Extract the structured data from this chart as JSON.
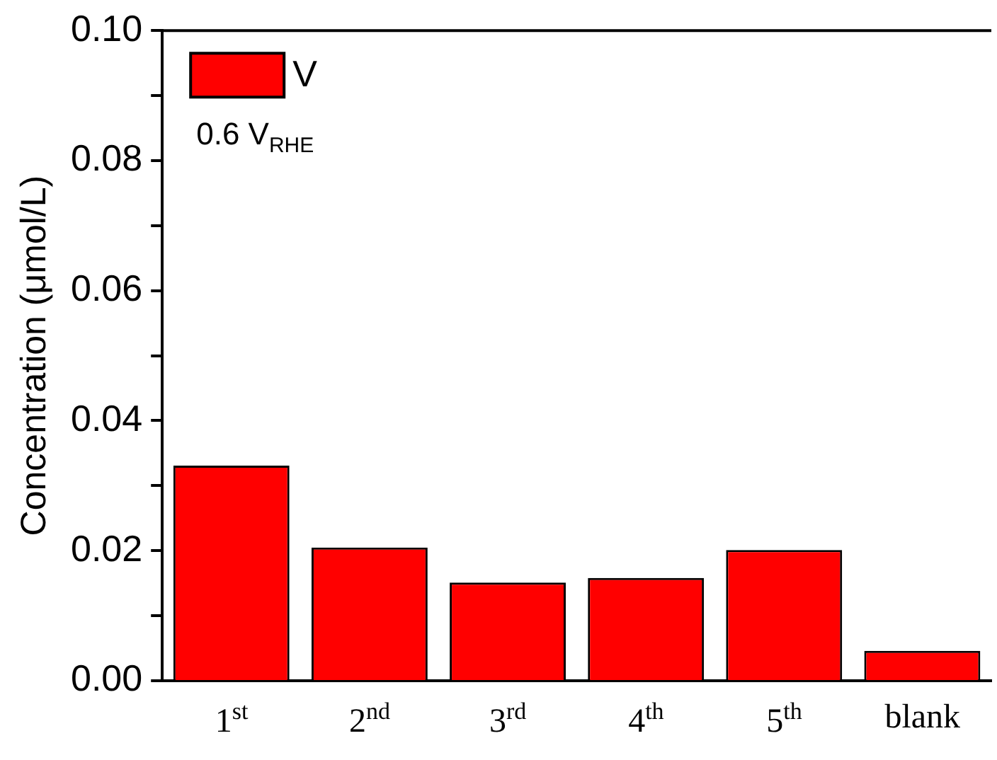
{
  "chart_data": {
    "type": "bar",
    "ylabel": "Concentration (μmol/L)",
    "categories": [
      "1$^{st}$",
      "2$^{nd}$",
      "3$^{rd}$",
      "4$^{th}$",
      "5$^{th}$",
      "blank"
    ],
    "series": [
      {
        "name": "V",
        "color": "#ff0000",
        "values": [
          0.0331,
          0.0205,
          0.0151,
          0.0158,
          0.0201,
          0.0046
        ]
      }
    ],
    "ylim": [
      0,
      0.1
    ],
    "yticks": [
      {
        "value": 0,
        "label": "0.00"
      },
      {
        "value": 0.01,
        "label": null
      },
      {
        "value": 0.02,
        "label": "0.02"
      },
      {
        "value": 0.03,
        "label": null
      },
      {
        "value": 0.04,
        "label": "0.04"
      },
      {
        "value": 0.05,
        "label": null
      },
      {
        "value": 0.06,
        "label": "0.06"
      },
      {
        "value": 0.07,
        "label": null
      },
      {
        "value": 0.08,
        "label": "0.08"
      },
      {
        "value": 0.09,
        "label": null
      },
      {
        "value": 0.1,
        "label": "0.10"
      }
    ],
    "grid": false,
    "legend": "top left",
    "annotations": [
      "0.6 V$_{RHE}$"
    ]
  }
}
